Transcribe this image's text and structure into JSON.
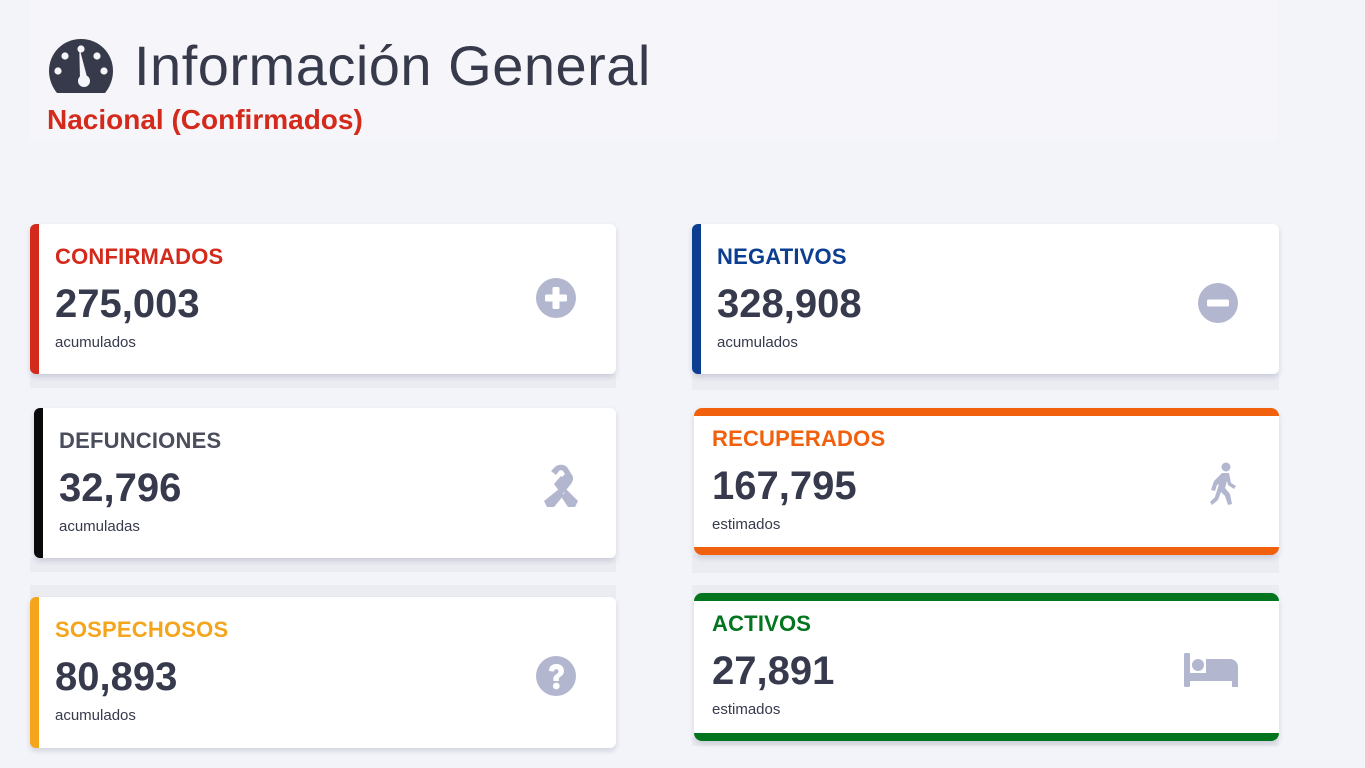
{
  "header": {
    "title": "Información General",
    "subtitle": "Nacional (Confirmados)",
    "icon": "tachometer-icon"
  },
  "colors": {
    "confirmados": "#d32a1c",
    "negativos": "#0b3d91",
    "defunciones": "#0a0a0a",
    "sospechosos": "#f4a51c",
    "recuperados": "#f1600d",
    "activos": "#04751f",
    "icon_gray": "#b3b6cf",
    "value_text": "#363a4c"
  },
  "cards": {
    "confirmados": {
      "label": "CONFIRMADOS",
      "value": "275,003",
      "note": "acumulados",
      "icon": "plus-circle-icon"
    },
    "negativos": {
      "label": "NEGATIVOS",
      "value": "328,908",
      "note": "acumulados",
      "icon": "minus-circle-icon"
    },
    "defunciones": {
      "label": "DEFUNCIONES",
      "value": "32,796",
      "note": "acumuladas",
      "icon": "ribbon-icon"
    },
    "recuperados": {
      "label": "RECUPERADOS",
      "value": "167,795",
      "note": "estimados",
      "icon": "walking-icon"
    },
    "sospechosos": {
      "label": "SOSPECHOSOS",
      "value": "80,893",
      "note": "acumulados",
      "icon": "question-circle-icon"
    },
    "activos": {
      "label": "ACTIVOS",
      "value": "27,891",
      "note": "estimados",
      "icon": "bed-icon"
    }
  }
}
